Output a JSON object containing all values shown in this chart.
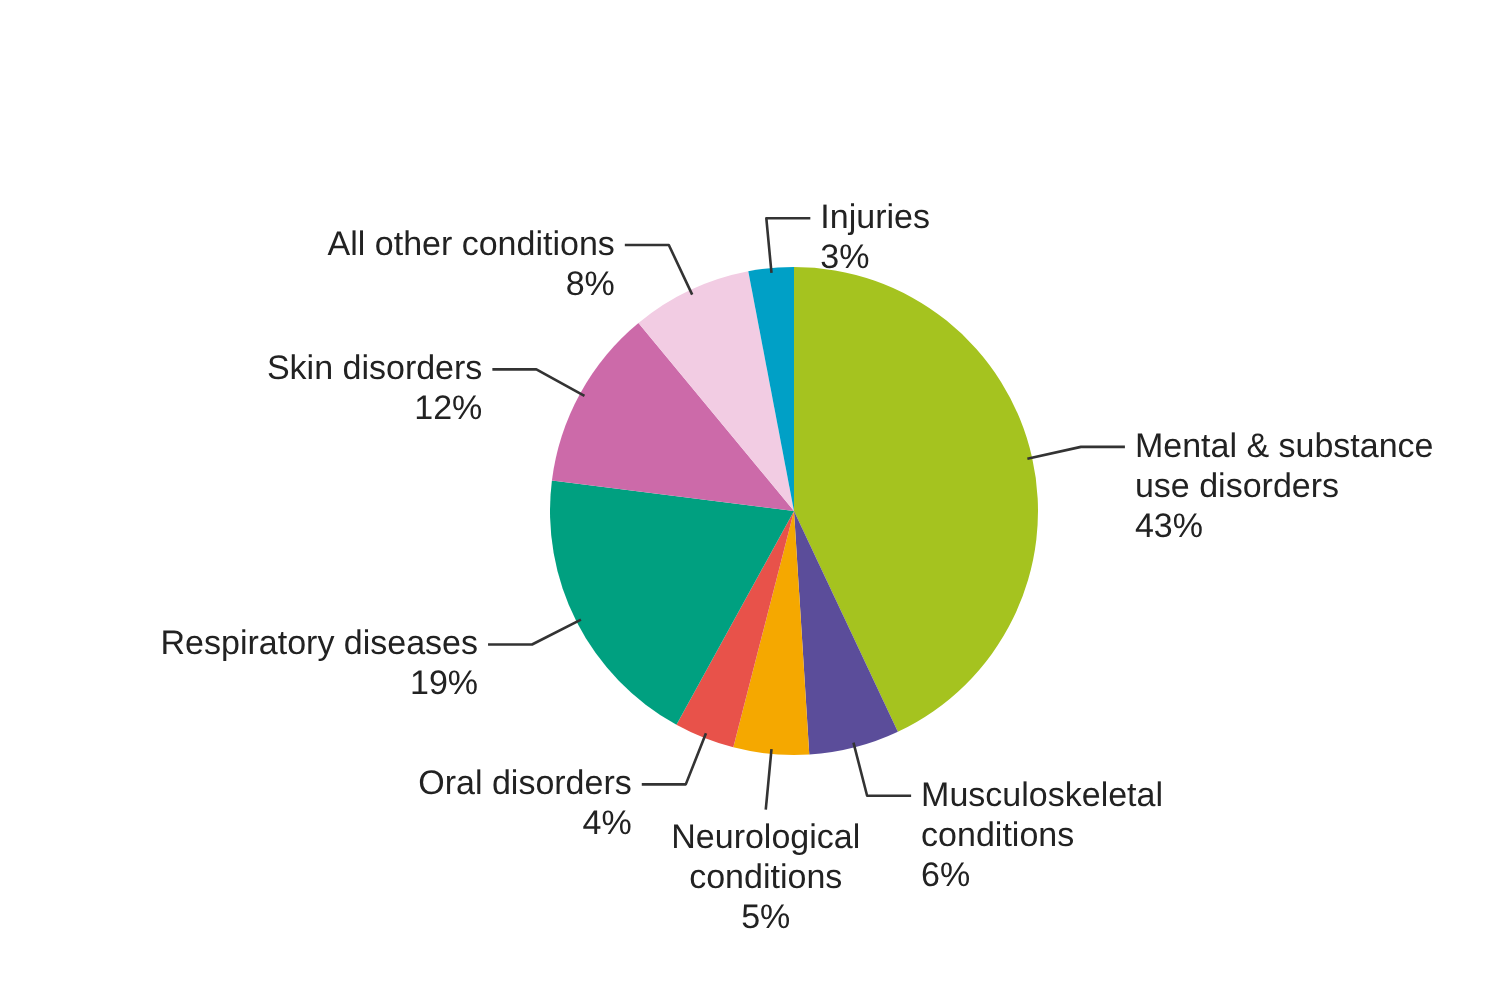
{
  "chart_data": {
    "type": "pie",
    "categories": [
      "Mental & substance use disorders",
      "Musculoskeletal conditions",
      "Neurological conditions",
      "Oral disorders",
      "Respiratory diseases",
      "Skin disorders",
      "All other conditions",
      "Injuries"
    ],
    "values": [
      43,
      6,
      5,
      4,
      19,
      12,
      8,
      3
    ],
    "value_labels": [
      "43%",
      "6%",
      "5%",
      "4%",
      "19%",
      "12%",
      "8%",
      "3%"
    ],
    "colors": [
      "#a5c31f",
      "#5b4d9a",
      "#f5a800",
      "#e8524a",
      "#00a080",
      "#cc6aa9",
      "#f2cce3",
      "#00a0c6"
    ]
  }
}
